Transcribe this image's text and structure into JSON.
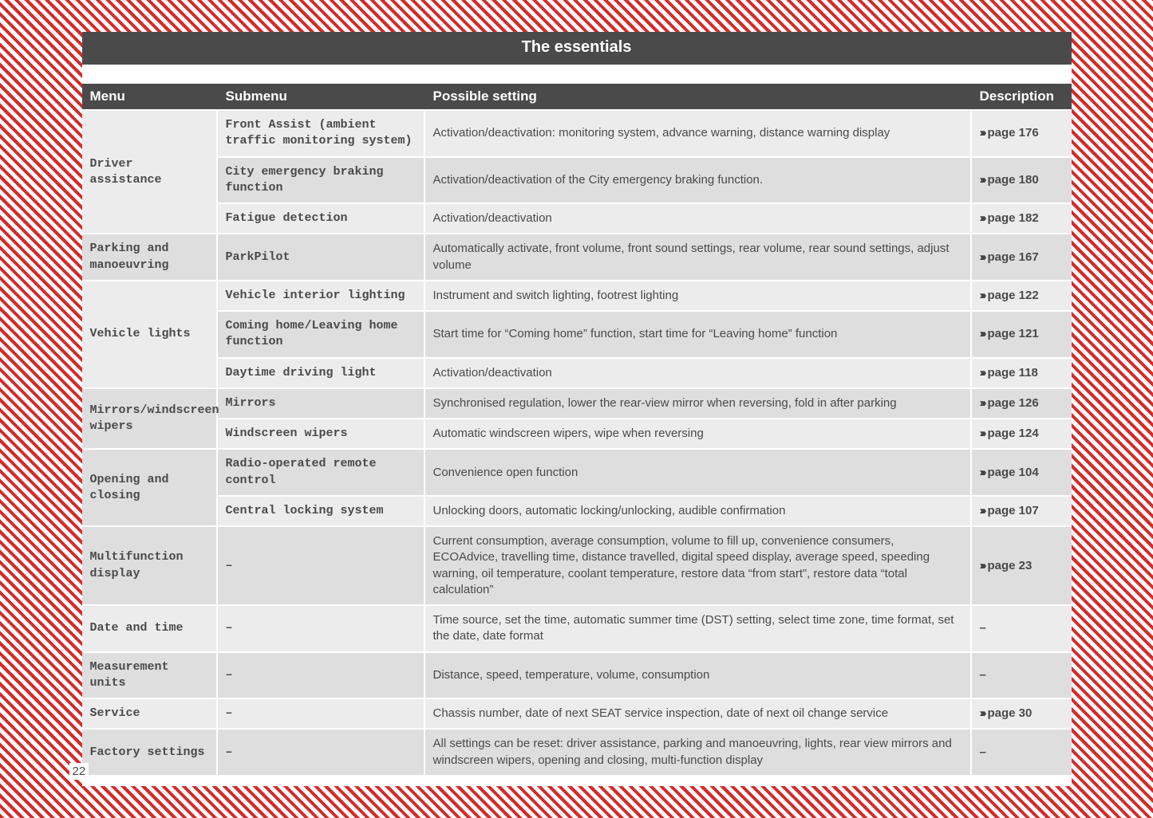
{
  "title": "The essentials",
  "page_number": "22",
  "colors": {
    "header_bg": "#4a4a4a",
    "header_fg": "#ffffff",
    "row_bg_a": "#ececec",
    "row_bg_b": "#dedede",
    "text": "#4a4a4a"
  },
  "columns": [
    "Menu",
    "Submenu",
    "Possible setting",
    "Description"
  ],
  "rows": [
    {
      "menu": "Driver assistance",
      "menu_rowspan": 3,
      "alt": false,
      "submenu": "Front Assist (ambient traffic monitoring system)",
      "setting": "Activation/deactivation: monitoring system, advance warning, distance warning display",
      "page": "page 176"
    },
    {
      "alt": true,
      "submenu": "City emergency braking function",
      "setting": "Activation/deactivation of the City emergency braking function.",
      "page": "page 180"
    },
    {
      "alt": false,
      "submenu": "Fatigue detection",
      "setting": "Activation/deactivation",
      "page": "page 182"
    },
    {
      "menu": "Parking and manoeuvring",
      "menu_rowspan": 1,
      "alt": true,
      "submenu": "ParkPilot",
      "setting": "Automatically activate, front volume, front sound settings, rear volume, rear sound settings, adjust volume",
      "page": "page 167"
    },
    {
      "menu": "Vehicle lights",
      "menu_rowspan": 3,
      "alt": false,
      "submenu": "Vehicle interior lighting",
      "setting": "Instrument and switch lighting, footrest lighting",
      "page": "page 122"
    },
    {
      "alt": true,
      "submenu": "Coming home/Leaving home function",
      "setting": "Start time for “Coming home” function, start time for “Leaving home” function",
      "page": "page 121"
    },
    {
      "alt": false,
      "submenu": "Daytime driving light",
      "setting": "Activation/deactivation",
      "page": "page 118"
    },
    {
      "menu": "Mirrors/windscreen wipers",
      "menu_rowspan": 2,
      "alt": true,
      "submenu": "Mirrors",
      "setting": "Synchronised regulation, lower the rear-view mirror when reversing, fold in after parking",
      "page": "page 126"
    },
    {
      "alt": false,
      "submenu": "Windscreen wipers",
      "setting": "Automatic windscreen wipers, wipe when reversing",
      "page": "page 124"
    },
    {
      "menu": "Opening and closing",
      "menu_rowspan": 2,
      "alt": true,
      "submenu": "Radio-operated remote control",
      "setting": "Convenience open function",
      "page": "page 104"
    },
    {
      "alt": false,
      "submenu": "Central locking system",
      "setting": "Unlocking doors, automatic locking/unlocking, audible confirmation",
      "page": "page 107"
    },
    {
      "menu": "Multifunction display",
      "menu_rowspan": 1,
      "alt": true,
      "submenu": "–",
      "setting": "Current consumption, average consumption, volume to fill up, convenience consumers, ECOAdvice, travelling time, distance travelled, digital speed display, average speed, speeding warning, oil temperature, coolant temperature, restore data “from start”, restore data “total calculation”",
      "page": "page 23"
    },
    {
      "menu": "Date and time",
      "menu_rowspan": 1,
      "alt": false,
      "submenu": "–",
      "setting": "Time source, set the time, automatic summer time (DST) setting, select time zone, time format, set the date, date format",
      "page": "–",
      "no_chevron": true
    },
    {
      "menu": "Measurement units",
      "menu_rowspan": 1,
      "alt": true,
      "submenu": "–",
      "setting": "Distance, speed, temperature, volume, consumption",
      "page": "–",
      "no_chevron": true
    },
    {
      "menu": "Service",
      "menu_rowspan": 1,
      "alt": false,
      "submenu": "–",
      "setting": "Chassis number, date of next SEAT service inspection, date of next oil change service",
      "page": "page 30"
    },
    {
      "menu": "Factory settings",
      "menu_rowspan": 1,
      "alt": true,
      "submenu": "–",
      "setting": "All settings can be reset: driver assistance, parking and manoeuvring, lights, rear view mirrors and windscreen wipers, opening and closing, multi-function display",
      "page": "–",
      "no_chevron": true
    }
  ]
}
